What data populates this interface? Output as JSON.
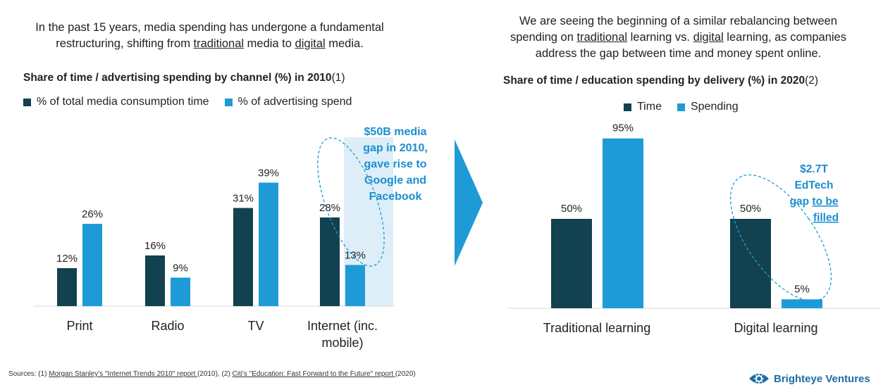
{
  "left": {
    "intro_1": "In the past 15 years, media spending has undergone a fundamental",
    "intro_2a": "restructuring, shifting from ",
    "intro_2b": "traditional",
    "intro_2c": " media to ",
    "intro_2d": "digital",
    "intro_2e": " media."
  },
  "right": {
    "intro_1": "We are seeing the beginning of a similar rebalancing between",
    "intro_2a": "spending on ",
    "intro_2b": "traditional",
    "intro_2c": " learning vs. ",
    "intro_2d": "digital",
    "intro_2e": " learning, as companies",
    "intro_3": "address the gap between time and money spent online."
  },
  "chart_data": [
    {
      "type": "bar",
      "title": "Share of time / advertising spending by channel (%) in 2010",
      "title_ref": "(1)",
      "categories": [
        "Print",
        "Radio",
        "TV",
        "Internet (inc. mobile)"
      ],
      "category_lines": [
        [
          "Print"
        ],
        [
          "Radio"
        ],
        [
          "TV"
        ],
        [
          "Internet (inc.",
          "mobile)"
        ]
      ],
      "series": [
        {
          "name": "% of total media consumption time",
          "color": "#12414f",
          "values": [
            12,
            16,
            31,
            28
          ]
        },
        {
          "name": "% of advertising spend",
          "color": "#1e9bd7",
          "values": [
            26,
            9,
            39,
            13
          ]
        }
      ],
      "value_suffix": "%",
      "annotation_lines": [
        "$50B media",
        "gap in 2010,",
        "gave rise to",
        "Google and",
        "Facebook"
      ],
      "legend_position": "top-left",
      "grid": false
    },
    {
      "type": "bar",
      "title": "Share of time / education spending by delivery (%) in 2020",
      "title_ref": "(2)",
      "categories": [
        "Traditional learning",
        "Digital learning"
      ],
      "series": [
        {
          "name": "Time",
          "color": "#12414f",
          "values": [
            50,
            50
          ]
        },
        {
          "name": "Spending",
          "color": "#1e9bd7",
          "values": [
            95,
            5
          ]
        }
      ],
      "value_suffix": "%",
      "annotation_lines": [
        "$2.7T",
        "EdTech"
      ],
      "annotation_gap_word": "gap",
      "annotation_underlined": [
        "to be",
        "filled"
      ],
      "legend_position": "top-center",
      "grid": false
    }
  ],
  "footer": {
    "sources_prefix": "Sources: (1) ",
    "source_1": "Morgan Stanley's \"Internet Trends 2010\" report ",
    "source_1_tail": "(2010), (2)  ",
    "source_2": "Citi's \"Education: Fast Forward to the Future\" report ",
    "source_2_tail": "(2020)",
    "brand": "Brighteye Ventures",
    "brand_icon": "eye-icon"
  },
  "colors": {
    "dark": "#12414f",
    "light": "#1e9bd7",
    "accent": "#1a8fd0"
  }
}
